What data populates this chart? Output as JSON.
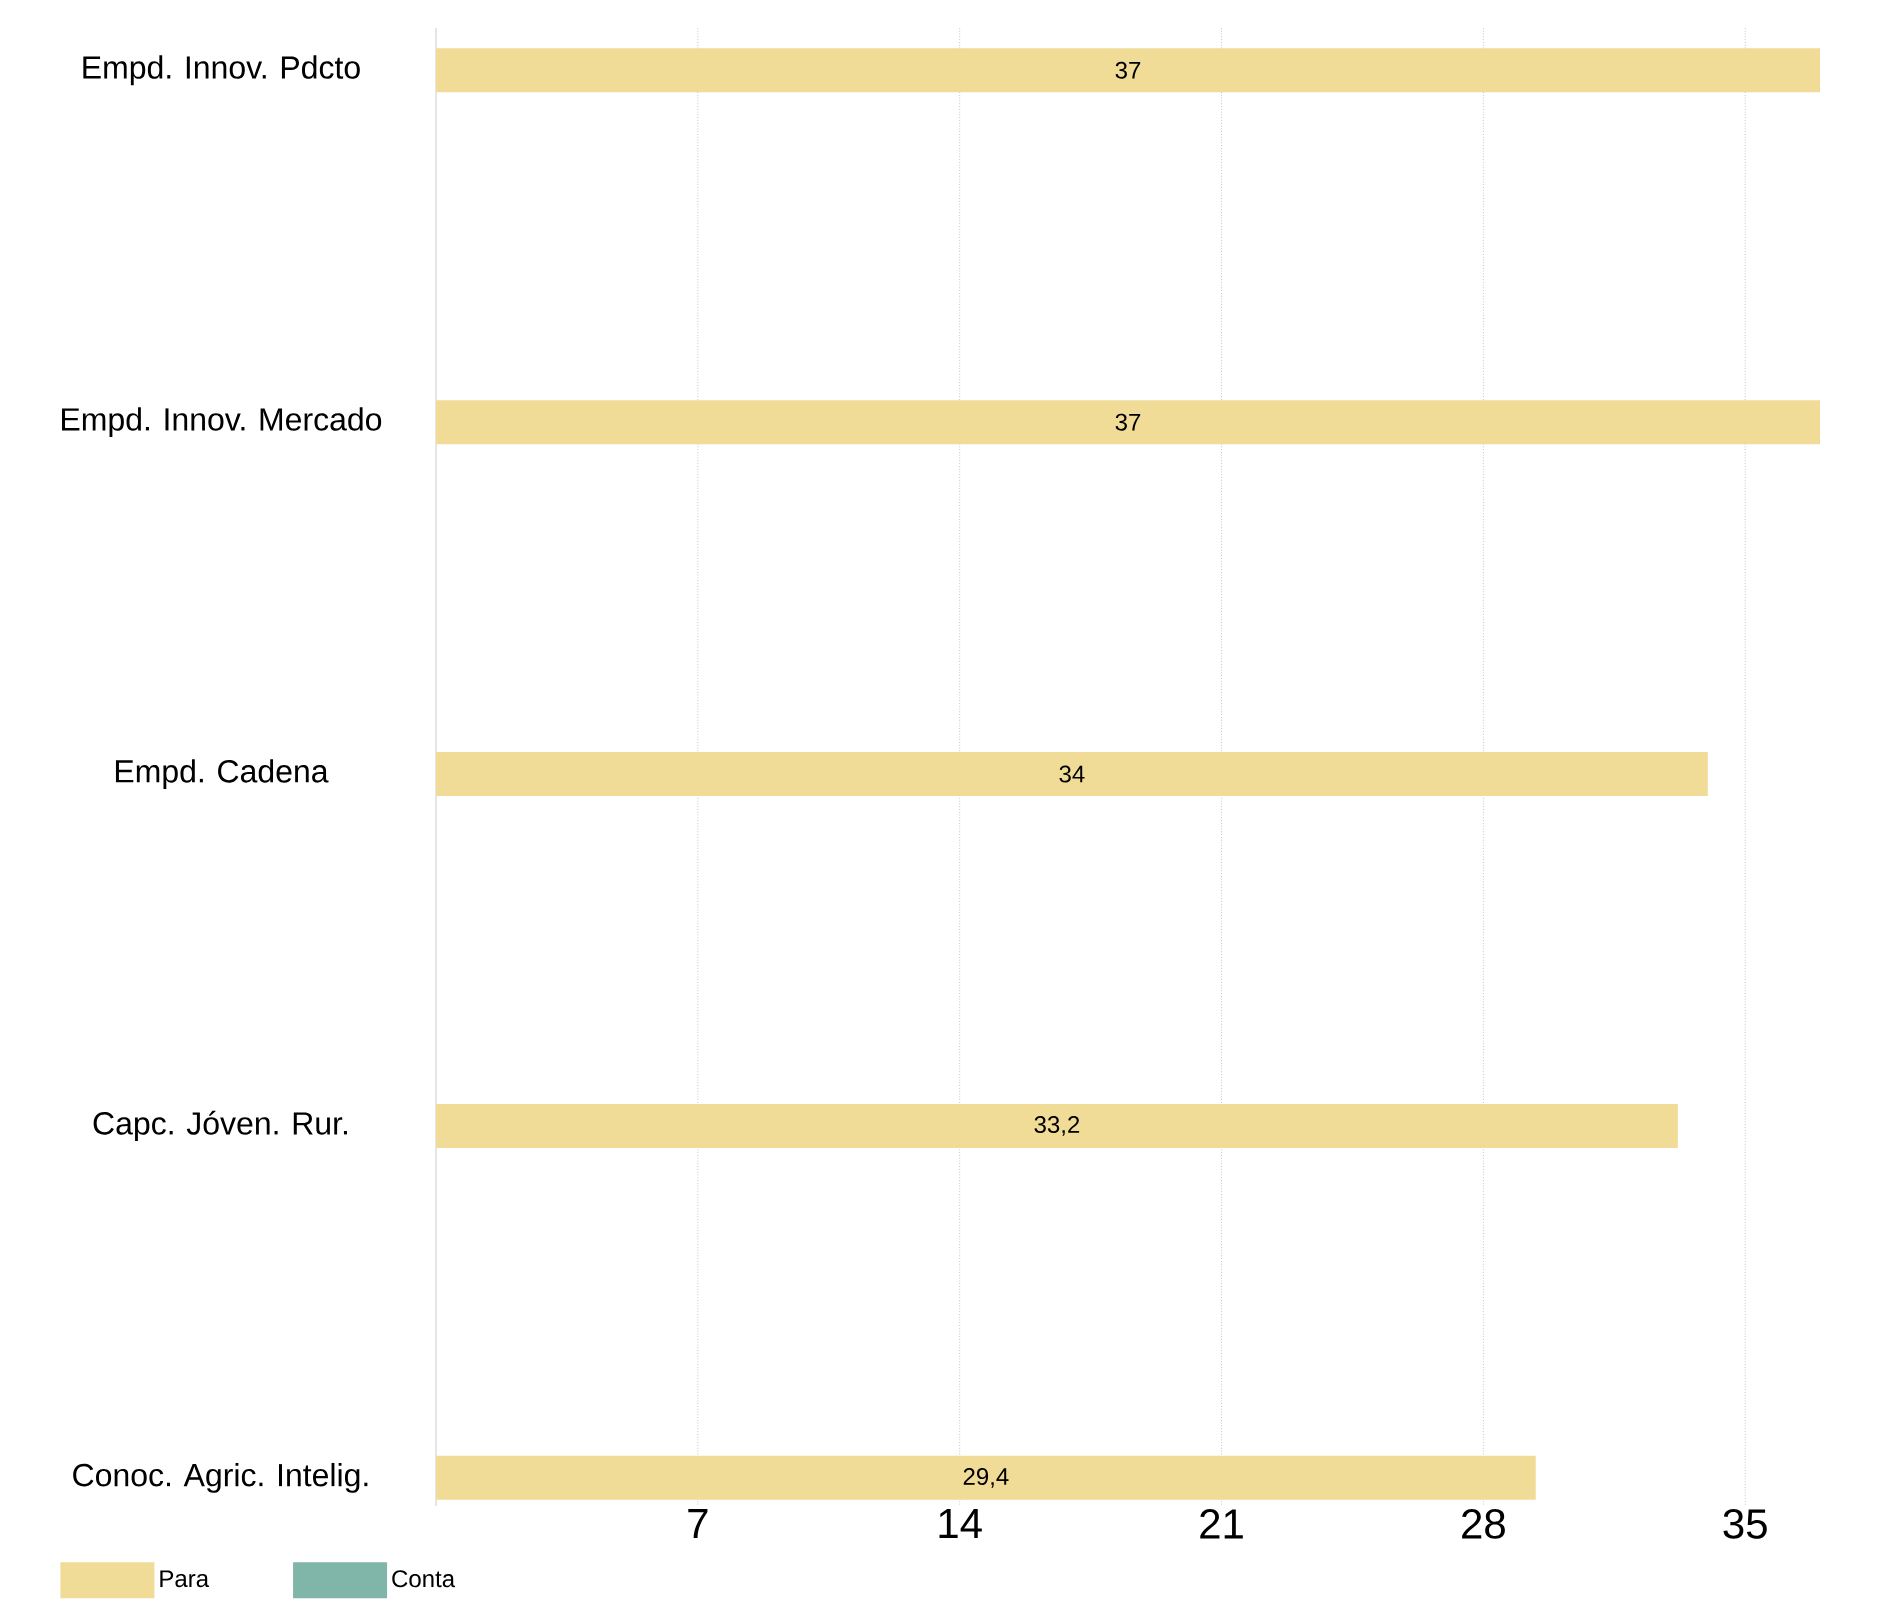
{
  "chart_data": {
    "type": "bar",
    "orientation": "horizontal",
    "categories": [
      "Empd. Innov. Pdcto",
      "Empd. Innov. Mercado",
      "Empd. Cadena",
      "Capc. Jóven. Rur.",
      "Conoc. Agric. Intelig."
    ],
    "series": [
      {
        "name": "Para",
        "color": "#f0dc96",
        "values": [
          37,
          37,
          34,
          33.2,
          29.4
        ],
        "value_labels": [
          "37",
          "37",
          "34",
          "33,2",
          "29,4"
        ]
      },
      {
        "name": "Conta",
        "color": "#80b5aa",
        "values": [
          null,
          null,
          null,
          null,
          null
        ]
      }
    ],
    "xlim": [
      0,
      37
    ],
    "xticks": [
      7,
      14,
      21,
      28,
      35
    ],
    "grid": "x",
    "legend": "bottom left"
  }
}
